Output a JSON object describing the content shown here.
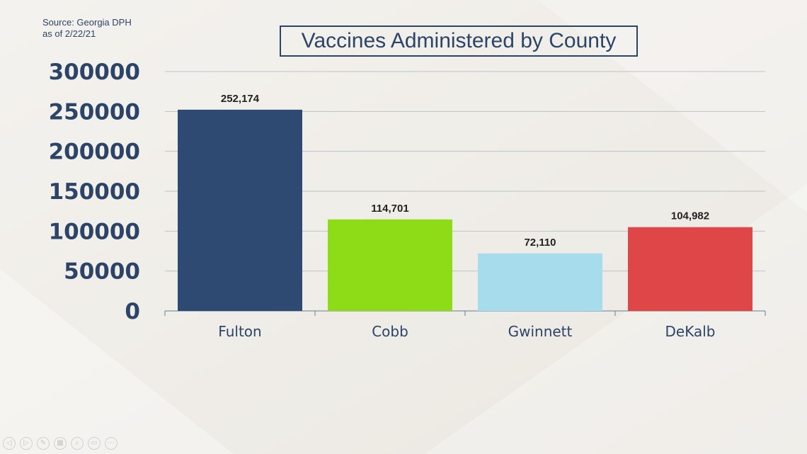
{
  "source": {
    "line1": "Source: Georgia DPH",
    "line2": "as of 2/22/21"
  },
  "chart_data": {
    "type": "bar",
    "title": "Vaccines Administered by County",
    "categories": [
      "Fulton",
      "Cobb",
      "Gwinnett",
      "DeKalb"
    ],
    "values": [
      252174,
      114701,
      72110,
      104982
    ],
    "data_labels": [
      "252,174",
      "114,701",
      "72,110",
      "104,982"
    ],
    "colors": [
      "#2e4a72",
      "#8edc17",
      "#a6dcec",
      "#df4648"
    ],
    "ylim": [
      0,
      300000
    ],
    "yticks": [
      0,
      50000,
      100000,
      150000,
      200000,
      250000,
      300000
    ],
    "grid": true,
    "xlabel": "",
    "ylabel": ""
  },
  "slide_controls": [
    "prev-icon",
    "next-icon",
    "pen-icon",
    "slides-icon",
    "zoom-icon",
    "subtitle-icon",
    "more-icon"
  ]
}
